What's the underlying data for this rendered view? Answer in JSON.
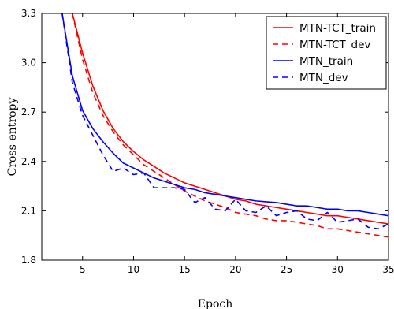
{
  "chart_data": {
    "type": "line",
    "title": "",
    "xlabel": "Epoch",
    "ylabel": "Cross-entropy",
    "xlim": [
      1,
      35
    ],
    "ylim": [
      1.8,
      3.3
    ],
    "x_ticks": [
      5,
      10,
      15,
      20,
      25,
      30,
      35
    ],
    "y_ticks": [
      1.8,
      2.1,
      2.4,
      2.7,
      3.0,
      3.3
    ],
    "y_tick_labels": [
      "1.8",
      "2.1",
      "2.4",
      "2.7",
      "3.0",
      "3.3"
    ],
    "grid": false,
    "legend_position": "top-right",
    "series": [
      {
        "name": "MTN-TCT_train",
        "color": "#ff0000",
        "style": "solid",
        "x": [
          4,
          5,
          6,
          7,
          8,
          9,
          10,
          11,
          12,
          13,
          14,
          15,
          16,
          17,
          18,
          19,
          20,
          21,
          22,
          23,
          24,
          25,
          26,
          27,
          28,
          29,
          30,
          31,
          32,
          33,
          34,
          35
        ],
        "values": [
          3.3,
          3.06,
          2.86,
          2.71,
          2.6,
          2.52,
          2.46,
          2.41,
          2.37,
          2.33,
          2.3,
          2.27,
          2.25,
          2.23,
          2.21,
          2.19,
          2.17,
          2.16,
          2.14,
          2.13,
          2.12,
          2.11,
          2.1,
          2.09,
          2.08,
          2.07,
          2.07,
          2.06,
          2.05,
          2.04,
          2.03,
          2.02
        ]
      },
      {
        "name": "MTN-TCT_dev",
        "color": "#ff0000",
        "style": "dashed",
        "x": [
          4,
          5,
          6,
          7,
          8,
          9,
          10,
          11,
          12,
          13,
          14,
          15,
          16,
          17,
          18,
          19,
          20,
          21,
          22,
          23,
          24,
          25,
          26,
          27,
          28,
          29,
          30,
          31,
          32,
          33,
          34,
          35
        ],
        "values": [
          3.3,
          3.02,
          2.82,
          2.68,
          2.58,
          2.5,
          2.44,
          2.38,
          2.34,
          2.3,
          2.26,
          2.22,
          2.19,
          2.16,
          2.14,
          2.12,
          2.09,
          2.08,
          2.07,
          2.05,
          2.04,
          2.04,
          2.03,
          2.02,
          2.01,
          1.99,
          1.99,
          1.98,
          1.97,
          1.96,
          1.95,
          1.94
        ]
      },
      {
        "name": "MTN_train",
        "color": "#0000ff",
        "style": "solid",
        "x": [
          3,
          4,
          5,
          6,
          7,
          8,
          9,
          10,
          11,
          12,
          13,
          14,
          15,
          16,
          17,
          18,
          19,
          20,
          21,
          22,
          23,
          24,
          25,
          26,
          27,
          28,
          29,
          30,
          31,
          32,
          33,
          34,
          35
        ],
        "values": [
          3.3,
          2.92,
          2.71,
          2.6,
          2.52,
          2.45,
          2.39,
          2.36,
          2.33,
          2.3,
          2.28,
          2.26,
          2.24,
          2.23,
          2.21,
          2.2,
          2.19,
          2.18,
          2.17,
          2.16,
          2.155,
          2.15,
          2.14,
          2.13,
          2.13,
          2.12,
          2.11,
          2.11,
          2.1,
          2.1,
          2.09,
          2.08,
          2.07
        ]
      },
      {
        "name": "MTN_dev",
        "color": "#0000ff",
        "style": "dashed",
        "x": [
          3,
          4,
          5,
          6,
          7,
          8,
          9,
          10,
          11,
          12,
          13,
          14,
          15,
          16,
          17,
          18,
          19,
          20,
          21,
          22,
          23,
          24,
          25,
          26,
          27,
          28,
          29,
          30,
          31,
          32,
          33,
          34,
          35
        ],
        "values": [
          3.3,
          2.88,
          2.68,
          2.56,
          2.44,
          2.34,
          2.36,
          2.32,
          2.33,
          2.24,
          2.24,
          2.24,
          2.23,
          2.15,
          2.18,
          2.11,
          2.1,
          2.17,
          2.1,
          2.09,
          2.13,
          2.07,
          2.09,
          2.1,
          2.05,
          2.04,
          2.09,
          2.03,
          2.04,
          2.05,
          2.0,
          1.99,
          2.02
        ]
      }
    ]
  }
}
